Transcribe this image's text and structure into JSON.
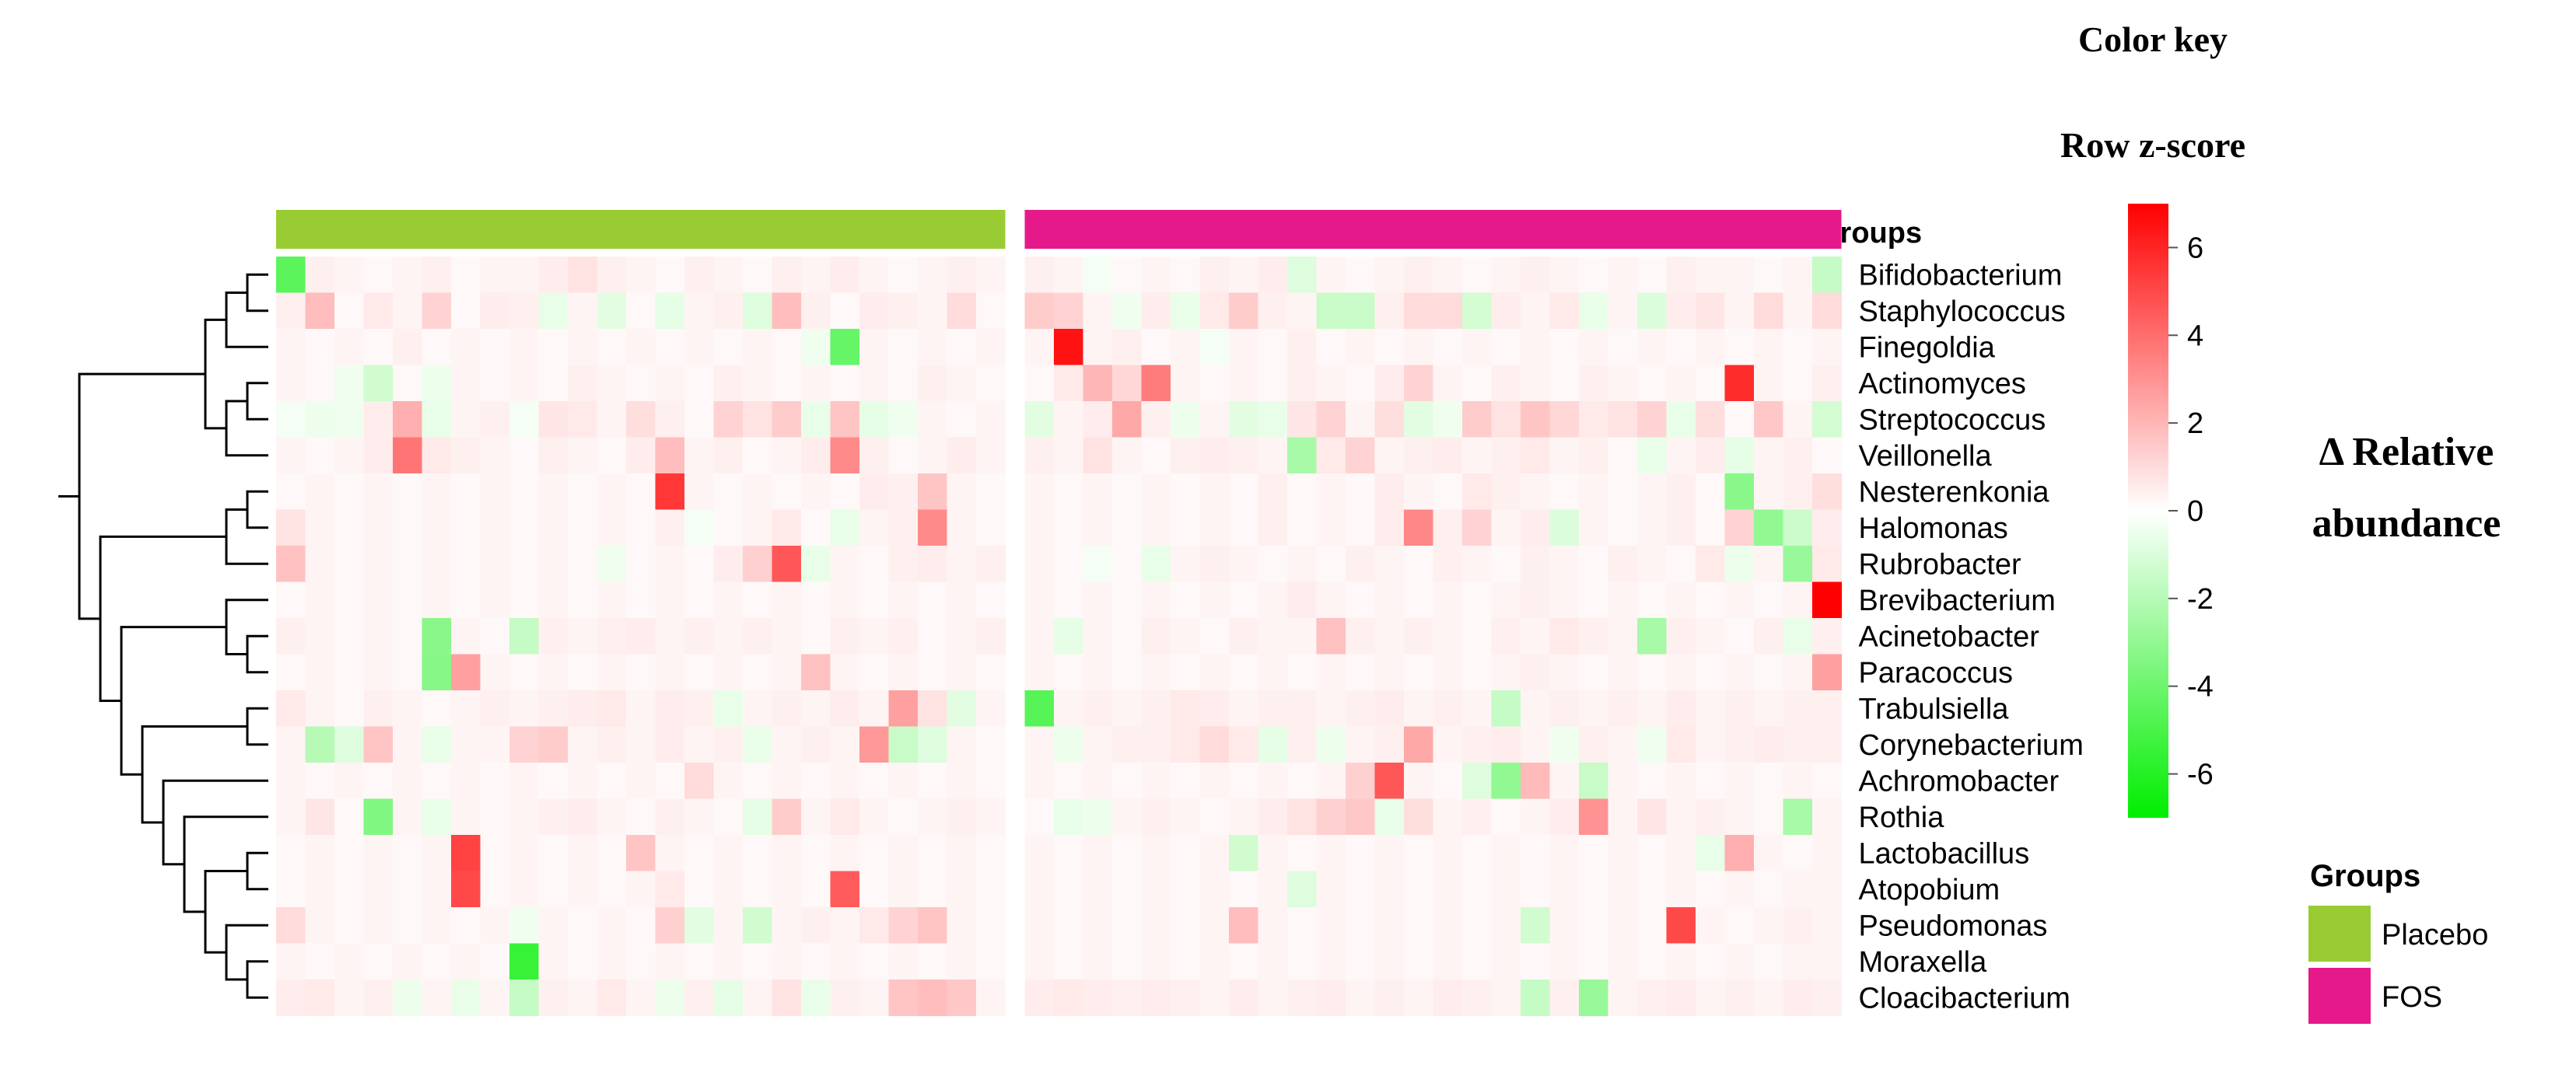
{
  "chart_data": {
    "type": "heatmap",
    "title": "Color key",
    "color_scale": {
      "label": "Row z-score",
      "title_lines": [
        "Δ Relative",
        "abundance"
      ],
      "ticks": [
        6,
        4,
        2,
        0,
        -2,
        -4,
        -6
      ],
      "range": [
        -7,
        7
      ],
      "low_color": "#00ee00",
      "mid_color": "#ffffff",
      "high_color": "#ff0000"
    },
    "groups_label": "Groups",
    "groups": [
      {
        "name": "Placebo",
        "color": "#99cc33",
        "n_columns": 25
      },
      {
        "name": "FOS",
        "color": "#e6198a",
        "n_columns": 28
      }
    ],
    "legend": {
      "title": "Groups",
      "position": "bottom-right"
    },
    "rows": [
      "Bifidobacterium",
      "Staphylococcus",
      "Finegoldia",
      "Actinomyces",
      "Streptococcus",
      "Veillonella",
      "Nesterenkonia",
      "Halomonas",
      "Rubrobacter",
      "Brevibacterium",
      "Acinetobacter",
      "Paracoccus",
      "Trabulsiella",
      "Corynebacterium",
      "Achromobacter",
      "Rothia",
      "Lactobacillus",
      "Atopobium",
      "Pseudomonas",
      "Moraxella",
      "Cloacibacterium"
    ],
    "values": [
      [
        -4.5,
        0.4,
        0.3,
        0.2,
        0.3,
        0.4,
        0.2,
        0.3,
        0.3,
        0.5,
        0.8,
        0.4,
        0.3,
        0.2,
        0.4,
        0.3,
        0.2,
        0.4,
        0.3,
        0.5,
        0.3,
        0.2,
        0.3,
        0.4,
        0.3,
        0.4,
        0.3,
        -0.3,
        0.2,
        0.3,
        0.2,
        0.4,
        0.3,
        0.5,
        -0.9,
        0.3,
        0.2,
        0.3,
        0.4,
        0.3,
        0.2,
        0.3,
        0.4,
        0.3,
        0.2,
        0.3,
        0.2,
        0.4,
        0.3,
        0.3,
        0.2,
        0.3,
        -1.6
      ],
      [
        0.4,
        1.8,
        0.2,
        0.6,
        0.3,
        1.2,
        0.2,
        0.5,
        0.4,
        -0.6,
        0.3,
        -0.8,
        0.2,
        -0.7,
        0.3,
        0.4,
        -0.9,
        1.8,
        0.4,
        0.2,
        0.5,
        0.4,
        0.3,
        1.0,
        0.2,
        1.4,
        1.2,
        0.3,
        -0.4,
        0.5,
        -0.6,
        0.6,
        1.4,
        0.4,
        0.3,
        -1.5,
        -1.5,
        0.4,
        1.0,
        1.0,
        -1.2,
        0.5,
        0.3,
        0.6,
        -0.6,
        0.3,
        -1.0,
        0.5,
        0.7,
        0.3,
        1.0,
        0.3,
        1.0
      ],
      [
        0.3,
        0.2,
        0.3,
        0.2,
        0.4,
        0.2,
        0.3,
        0.2,
        0.3,
        0.2,
        0.3,
        0.2,
        0.3,
        0.2,
        0.3,
        0.2,
        0.3,
        0.2,
        -0.4,
        -4.2,
        0.3,
        0.2,
        0.3,
        0.2,
        0.3,
        0.3,
        6.5,
        0.3,
        0.4,
        0.2,
        0.3,
        -0.3,
        0.3,
        0.2,
        0.4,
        0.2,
        0.3,
        0.2,
        0.3,
        0.2,
        0.3,
        0.2,
        0.3,
        0.2,
        0.3,
        0.2,
        0.3,
        0.2,
        0.3,
        0.2,
        0.3,
        0.2,
        0.3
      ],
      [
        0.3,
        0.2,
        -0.4,
        -1.3,
        0.2,
        -0.5,
        0.3,
        0.2,
        0.3,
        0.2,
        0.4,
        0.3,
        0.2,
        0.3,
        0.2,
        0.4,
        0.3,
        0.2,
        0.3,
        0.2,
        0.3,
        0.2,
        0.4,
        0.3,
        0.2,
        0.2,
        0.6,
        2.0,
        1.1,
        3.6,
        0.3,
        0.2,
        0.3,
        0.2,
        0.4,
        0.3,
        0.2,
        0.5,
        1.2,
        0.3,
        0.2,
        0.4,
        0.3,
        0.2,
        0.4,
        0.3,
        0.2,
        0.3,
        0.2,
        5.8,
        0.3,
        0.2,
        0.4
      ],
      [
        -0.3,
        -0.5,
        -0.4,
        0.5,
        2.2,
        -0.6,
        0.3,
        0.4,
        -0.3,
        0.7,
        0.6,
        0.3,
        0.9,
        0.4,
        0.2,
        1.2,
        0.8,
        1.4,
        -0.6,
        1.6,
        -0.7,
        -0.4,
        0.3,
        0.2,
        0.3,
        -0.8,
        0.3,
        0.5,
        2.4,
        0.4,
        -0.5,
        0.3,
        -0.8,
        -0.6,
        0.7,
        1.2,
        0.3,
        0.9,
        -0.8,
        -0.4,
        1.4,
        0.8,
        1.6,
        1.1,
        0.6,
        0.8,
        1.2,
        -0.6,
        0.9,
        0.2,
        1.5,
        0.3,
        -1.2
      ],
      [
        0.3,
        0.2,
        0.3,
        0.5,
        3.8,
        0.6,
        0.4,
        0.3,
        0.2,
        0.4,
        0.3,
        0.2,
        0.5,
        1.8,
        0.3,
        0.4,
        0.2,
        0.3,
        0.5,
        3.2,
        0.4,
        0.2,
        0.3,
        0.5,
        0.3,
        0.4,
        0.3,
        0.8,
        0.3,
        0.2,
        0.4,
        0.5,
        0.4,
        0.3,
        -2.4,
        0.6,
        1.2,
        0.3,
        0.4,
        0.5,
        0.3,
        0.4,
        0.6,
        0.3,
        0.4,
        0.2,
        -0.6,
        0.3,
        0.5,
        -0.7,
        0.3,
        0.4,
        0.2
      ],
      [
        0.2,
        0.3,
        0.2,
        0.3,
        0.2,
        0.3,
        0.2,
        0.3,
        0.2,
        0.3,
        0.2,
        0.3,
        0.2,
        5.5,
        0.3,
        0.2,
        0.3,
        0.2,
        0.3,
        0.2,
        0.5,
        0.4,
        1.6,
        0.3,
        0.2,
        0.3,
        0.2,
        0.3,
        0.2,
        0.3,
        0.2,
        0.3,
        0.2,
        0.4,
        0.2,
        0.3,
        0.2,
        0.5,
        0.3,
        0.2,
        0.6,
        0.4,
        0.3,
        0.2,
        0.3,
        0.2,
        0.3,
        0.4,
        0.2,
        -3.2,
        0.3,
        0.4,
        0.9
      ],
      [
        0.8,
        0.3,
        0.2,
        0.3,
        0.2,
        0.3,
        0.2,
        0.3,
        0.2,
        0.3,
        0.2,
        0.3,
        0.2,
        0.4,
        -0.3,
        0.2,
        0.3,
        0.6,
        0.2,
        -0.6,
        0.3,
        0.4,
        3.2,
        0.3,
        0.2,
        0.3,
        0.2,
        0.3,
        0.2,
        0.3,
        0.2,
        0.3,
        0.2,
        0.4,
        0.2,
        0.3,
        0.2,
        0.5,
        3.3,
        0.4,
        1.2,
        0.3,
        0.5,
        -1.0,
        0.3,
        0.2,
        0.3,
        0.4,
        0.2,
        1.2,
        -3.0,
        -1.4,
        0.5
      ],
      [
        1.7,
        0.3,
        0.2,
        0.3,
        0.2,
        0.3,
        0.2,
        0.3,
        0.2,
        0.3,
        0.2,
        -0.4,
        0.2,
        0.3,
        0.2,
        0.5,
        1.3,
        4.6,
        -0.6,
        0.3,
        0.2,
        0.4,
        0.5,
        0.3,
        0.4,
        0.3,
        0.2,
        -0.3,
        0.2,
        -0.6,
        0.3,
        0.4,
        0.3,
        0.2,
        0.3,
        0.2,
        0.4,
        0.3,
        0.2,
        0.4,
        0.3,
        0.2,
        0.4,
        0.3,
        0.2,
        0.4,
        0.3,
        0.2,
        0.6,
        -0.5,
        0.3,
        -2.8,
        0.6
      ],
      [
        0.2,
        0.3,
        0.2,
        0.3,
        0.2,
        0.3,
        0.2,
        0.3,
        0.2,
        0.3,
        0.2,
        0.3,
        0.2,
        0.3,
        0.2,
        0.3,
        0.2,
        0.3,
        0.2,
        0.3,
        0.2,
        0.3,
        0.2,
        0.3,
        0.2,
        0.3,
        0.2,
        0.3,
        0.2,
        0.3,
        0.2,
        0.3,
        0.2,
        0.3,
        0.5,
        0.3,
        0.2,
        0.3,
        0.2,
        0.3,
        0.2,
        0.3,
        0.4,
        0.3,
        0.2,
        0.3,
        0.2,
        0.3,
        0.2,
        0.3,
        0.2,
        0.3,
        7.0
      ],
      [
        0.4,
        0.3,
        0.2,
        0.3,
        0.2,
        -3.2,
        0.3,
        0.2,
        -1.6,
        0.4,
        0.3,
        0.4,
        0.5,
        0.3,
        0.4,
        0.3,
        0.4,
        0.3,
        0.2,
        0.4,
        0.3,
        0.4,
        0.2,
        0.3,
        0.4,
        0.3,
        -0.7,
        0.3,
        0.2,
        0.4,
        0.3,
        0.2,
        0.4,
        0.3,
        0.3,
        1.7,
        0.4,
        0.3,
        0.4,
        0.3,
        0.2,
        0.4,
        0.3,
        0.6,
        0.4,
        0.3,
        -2.4,
        0.4,
        0.3,
        0.2,
        0.4,
        -0.6,
        0.4
      ],
      [
        0.2,
        0.3,
        0.2,
        0.3,
        0.2,
        -3.3,
        2.6,
        0.3,
        0.2,
        0.3,
        0.2,
        0.3,
        0.2,
        0.3,
        0.2,
        0.3,
        0.2,
        0.3,
        1.7,
        0.3,
        0.2,
        0.3,
        0.2,
        0.3,
        0.2,
        0.3,
        0.2,
        0.3,
        0.2,
        0.3,
        0.2,
        0.3,
        0.2,
        0.3,
        0.2,
        0.3,
        0.2,
        0.3,
        0.2,
        0.3,
        0.2,
        0.3,
        0.4,
        0.3,
        0.2,
        0.3,
        0.2,
        0.3,
        0.2,
        0.3,
        0.2,
        0.3,
        2.6
      ],
      [
        0.6,
        0.3,
        0.2,
        0.4,
        0.3,
        0.2,
        0.3,
        0.4,
        0.3,
        0.4,
        0.5,
        0.6,
        0.3,
        0.5,
        0.4,
        -0.6,
        0.3,
        0.4,
        0.3,
        0.5,
        0.3,
        2.6,
        0.8,
        -0.8,
        0.3,
        -4.6,
        0.3,
        0.4,
        0.3,
        0.4,
        0.6,
        0.5,
        0.3,
        0.4,
        0.4,
        0.3,
        0.4,
        0.5,
        0.3,
        0.4,
        0.3,
        -1.6,
        0.3,
        0.4,
        0.3,
        0.4,
        0.3,
        0.5,
        0.3,
        0.4,
        0.3,
        0.4,
        0.4
      ],
      [
        0.3,
        -2.0,
        -0.9,
        1.6,
        0.3,
        -0.6,
        0.3,
        0.3,
        1.2,
        1.4,
        0.3,
        0.4,
        0.3,
        0.5,
        0.3,
        0.4,
        -0.6,
        0.3,
        0.4,
        0.3,
        2.8,
        -1.5,
        -0.9,
        0.3,
        0.2,
        0.3,
        -0.5,
        0.3,
        0.4,
        0.4,
        0.6,
        1.0,
        0.6,
        -0.7,
        0.4,
        -0.5,
        0.3,
        0.4,
        2.4,
        0.3,
        0.4,
        0.5,
        0.3,
        -0.4,
        0.4,
        0.3,
        -0.4,
        0.6,
        0.3,
        0.4,
        0.5,
        0.4,
        0.4
      ],
      [
        0.3,
        0.2,
        0.3,
        0.2,
        0.3,
        0.2,
        0.3,
        0.2,
        0.3,
        0.2,
        0.3,
        0.2,
        0.3,
        0.2,
        1.0,
        0.3,
        0.2,
        0.3,
        0.2,
        0.3,
        0.2,
        0.3,
        0.2,
        0.3,
        0.2,
        0.3,
        0.2,
        0.3,
        0.2,
        0.3,
        0.2,
        0.3,
        0.2,
        0.3,
        0.2,
        0.3,
        1.3,
        4.6,
        0.3,
        0.2,
        -0.9,
        -3.0,
        1.9,
        0.3,
        -1.5,
        0.3,
        0.2,
        0.3,
        0.2,
        0.3,
        0.2,
        0.3,
        0.2
      ],
      [
        0.3,
        0.7,
        0.2,
        -3.5,
        0.3,
        -0.6,
        0.3,
        0.2,
        0.3,
        0.4,
        0.5,
        0.3,
        0.2,
        0.4,
        0.3,
        0.2,
        -0.7,
        1.4,
        0.3,
        0.6,
        0.3,
        0.2,
        0.3,
        0.4,
        0.3,
        0.2,
        -0.6,
        -0.5,
        0.3,
        0.4,
        0.3,
        0.2,
        0.3,
        0.5,
        0.8,
        1.3,
        1.5,
        -0.6,
        0.9,
        0.3,
        0.4,
        0.2,
        0.3,
        0.5,
        3.0,
        0.3,
        0.7,
        0.3,
        0.4,
        0.3,
        0.2,
        -2.4,
        0.3
      ],
      [
        0.2,
        0.3,
        0.2,
        0.3,
        0.2,
        0.3,
        5.2,
        0.2,
        0.3,
        0.2,
        0.3,
        0.2,
        1.6,
        0.3,
        0.2,
        0.3,
        0.2,
        0.3,
        0.2,
        0.3,
        0.2,
        0.3,
        0.2,
        0.3,
        0.2,
        0.3,
        0.2,
        0.3,
        0.2,
        0.3,
        0.2,
        0.3,
        -1.3,
        0.3,
        0.2,
        0.3,
        0.2,
        0.3,
        0.2,
        0.3,
        0.2,
        0.3,
        0.2,
        0.3,
        0.2,
        0.3,
        0.2,
        0.3,
        -0.6,
        2.2,
        0.3,
        0.2,
        0.3
      ],
      [
        0.2,
        0.3,
        0.2,
        0.3,
        0.2,
        0.3,
        5.0,
        0.2,
        0.3,
        0.2,
        0.3,
        0.2,
        0.3,
        0.6,
        0.2,
        0.3,
        0.2,
        0.3,
        0.2,
        4.5,
        0.2,
        0.3,
        0.2,
        0.3,
        0.2,
        0.3,
        0.2,
        0.3,
        0.2,
        0.3,
        0.2,
        0.3,
        0.2,
        0.3,
        -0.9,
        0.3,
        0.2,
        0.3,
        0.2,
        0.3,
        0.2,
        0.3,
        0.2,
        0.3,
        0.2,
        0.3,
        0.2,
        0.3,
        0.2,
        0.3,
        0.2,
        0.3,
        0.3
      ],
      [
        1.0,
        0.3,
        0.2,
        0.3,
        0.2,
        0.3,
        0.2,
        0.3,
        -0.4,
        0.3,
        0.2,
        0.3,
        0.2,
        1.3,
        -0.8,
        0.3,
        -1.3,
        0.3,
        0.4,
        0.3,
        0.6,
        1.2,
        1.6,
        0.3,
        0.2,
        0.3,
        0.2,
        0.3,
        0.2,
        0.3,
        0.2,
        0.3,
        1.8,
        0.3,
        0.2,
        0.3,
        0.2,
        0.3,
        0.2,
        0.3,
        0.2,
        0.3,
        -1.3,
        0.3,
        0.2,
        0.3,
        0.2,
        5.0,
        0.3,
        0.2,
        0.3,
        0.4,
        0.3
      ],
      [
        0.3,
        0.2,
        0.3,
        0.2,
        0.3,
        0.2,
        0.3,
        0.2,
        -5.5,
        0.3,
        0.2,
        0.3,
        0.2,
        0.3,
        0.2,
        0.3,
        0.2,
        0.3,
        0.2,
        0.3,
        0.2,
        0.3,
        0.2,
        0.3,
        0.2,
        0.3,
        0.2,
        0.3,
        0.2,
        0.3,
        0.2,
        0.3,
        0.2,
        0.3,
        0.2,
        0.3,
        0.2,
        0.3,
        0.2,
        0.3,
        0.2,
        0.3,
        0.2,
        0.3,
        0.2,
        0.3,
        0.2,
        0.3,
        0.2,
        0.3,
        0.2,
        0.3,
        0.3
      ],
      [
        0.5,
        0.6,
        0.3,
        0.4,
        -0.5,
        0.3,
        -0.6,
        0.3,
        -1.6,
        0.4,
        0.3,
        0.6,
        0.3,
        -0.5,
        0.4,
        -0.7,
        0.3,
        0.8,
        -0.6,
        0.4,
        0.3,
        1.6,
        1.8,
        1.5,
        0.3,
        0.5,
        0.6,
        0.5,
        0.4,
        0.5,
        0.4,
        0.3,
        0.5,
        0.3,
        0.4,
        0.5,
        0.3,
        0.4,
        0.3,
        0.5,
        0.4,
        0.3,
        -1.6,
        0.4,
        -2.8,
        0.3,
        0.4,
        0.5,
        0.3,
        0.4,
        0.3,
        0.5,
        0.4
      ]
    ]
  }
}
